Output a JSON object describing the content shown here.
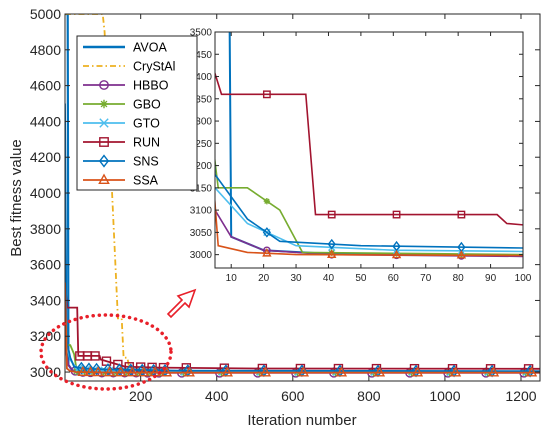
{
  "chart_data": {
    "type": "line",
    "xlabel": "Iteration number",
    "ylabel": "Best fitness value",
    "xlim": [
      1,
      1250
    ],
    "ylim": [
      2950,
      5000
    ],
    "xticks": [
      200,
      400,
      600,
      800,
      1000,
      1200
    ],
    "yticks": [
      3000,
      3200,
      3400,
      3600,
      3800,
      4000,
      4200,
      4400,
      4600,
      4800,
      5000
    ],
    "grid": false,
    "legend": "top-left",
    "series": [
      {
        "name": "AVOA",
        "color": "#0072bd",
        "dash": "",
        "marker": "none",
        "points": [
          [
            1,
            5000
          ],
          [
            8,
            5000
          ],
          [
            10,
            3040
          ],
          [
            20,
            3010
          ],
          [
            40,
            3002
          ],
          [
            100,
            2999
          ],
          [
            300,
            2998
          ],
          [
            1250,
            2998
          ]
        ]
      },
      {
        "name": "CryStAl",
        "color": "#edb120",
        "dash": "6,3,1.5,3",
        "marker": "none",
        "points": [
          [
            1,
            5000
          ],
          [
            100,
            5000
          ],
          [
            105,
            4900
          ],
          [
            140,
            3300
          ],
          [
            150,
            3300
          ],
          [
            155,
            3080
          ],
          [
            165,
            3080
          ],
          [
            170,
            3020
          ],
          [
            200,
            3010
          ],
          [
            300,
            3004
          ],
          [
            600,
            3002
          ],
          [
            1250,
            3001
          ]
        ]
      },
      {
        "name": "HBBO",
        "color": "#7e2f8e",
        "dash": "",
        "marker": "circle",
        "points": [
          [
            1,
            4050
          ],
          [
            5,
            3100
          ],
          [
            10,
            3040
          ],
          [
            20,
            3010
          ],
          [
            40,
            3000
          ],
          [
            100,
            2996
          ],
          [
            300,
            2995
          ],
          [
            1250,
            2995
          ]
        ]
      },
      {
        "name": "GBO",
        "color": "#77ac30",
        "dash": "",
        "marker": "star",
        "points": [
          [
            1,
            4100
          ],
          [
            3,
            3330
          ],
          [
            6,
            3150
          ],
          [
            15,
            3150
          ],
          [
            25,
            3100
          ],
          [
            32,
            3005
          ],
          [
            100,
            3000
          ],
          [
            300,
            2999
          ],
          [
            1250,
            2998
          ]
        ]
      },
      {
        "name": "GTO",
        "color": "#4dbeee",
        "dash": "",
        "marker": "x",
        "points": [
          [
            1,
            3200
          ],
          [
            5,
            3150
          ],
          [
            15,
            3070
          ],
          [
            30,
            3020
          ],
          [
            60,
            3010
          ],
          [
            100,
            3007
          ],
          [
            300,
            3004
          ],
          [
            1250,
            3002
          ]
        ]
      },
      {
        "name": "RUN",
        "color": "#a2142f",
        "dash": "",
        "marker": "square",
        "points": [
          [
            1,
            3500
          ],
          [
            7,
            3360
          ],
          [
            33,
            3360
          ],
          [
            36,
            3090
          ],
          [
            92,
            3090
          ],
          [
            95,
            3070
          ],
          [
            160,
            3030
          ],
          [
            250,
            3025
          ],
          [
            500,
            3020
          ],
          [
            1250,
            3018
          ]
        ]
      },
      {
        "name": "SNS",
        "color": "#0072bd",
        "dash": "",
        "marker": "diamond",
        "points": [
          [
            1,
            4500
          ],
          [
            5,
            3180
          ],
          [
            15,
            3080
          ],
          [
            25,
            3030
          ],
          [
            50,
            3020
          ],
          [
            100,
            3015
          ],
          [
            300,
            3008
          ],
          [
            1250,
            3005
          ]
        ]
      },
      {
        "name": "SSA",
        "color": "#d95319",
        "dash": "",
        "marker": "triangle",
        "points": [
          [
            1,
            3500
          ],
          [
            6,
            3020
          ],
          [
            15,
            3005
          ],
          [
            30,
            3000
          ],
          [
            100,
            2998
          ],
          [
            300,
            2997
          ],
          [
            1250,
            2997
          ]
        ]
      }
    ],
    "inset": {
      "xlim": [
        5,
        100
      ],
      "ylim": [
        2970,
        3500
      ],
      "xticks": [
        10,
        20,
        30,
        40,
        50,
        60,
        70,
        80,
        90,
        100
      ],
      "yticks": [
        3000,
        3050,
        3100,
        3150,
        3200,
        3250,
        3300,
        3350,
        3400,
        3450,
        3500
      ]
    },
    "annotations": [
      "dotted ellipse highlighting early iterations",
      "arrow pointing to zoomed inset"
    ]
  }
}
